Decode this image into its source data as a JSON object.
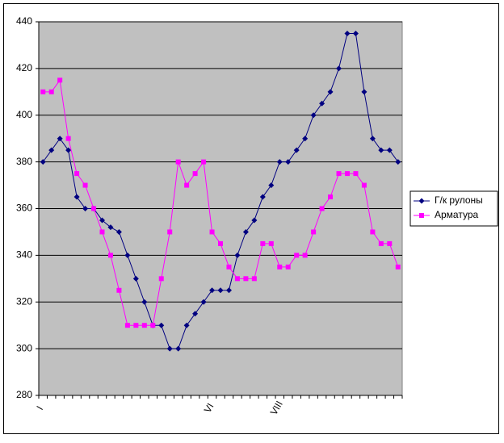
{
  "chart_data": {
    "type": "line",
    "categories": [
      "I",
      null,
      null,
      null,
      null,
      null,
      null,
      null,
      null,
      null,
      null,
      null,
      null,
      null,
      null,
      null,
      null,
      null,
      null,
      null,
      "VI",
      null,
      null,
      null,
      null,
      null,
      null,
      null,
      "VIII",
      null,
      null,
      null,
      null,
      null,
      null,
      null,
      null,
      null,
      null,
      null,
      null,
      null,
      null
    ],
    "series": [
      {
        "name": "Г/к рулоны",
        "color": "#000080",
        "marker": "diamond",
        "values": [
          380,
          385,
          390,
          385,
          365,
          360,
          360,
          355,
          352,
          350,
          340,
          330,
          320,
          310,
          310,
          300,
          300,
          310,
          315,
          320,
          325,
          325,
          325,
          340,
          350,
          355,
          365,
          370,
          380,
          380,
          385,
          390,
          400,
          405,
          410,
          420,
          435,
          435,
          410,
          390,
          385,
          385,
          380
        ]
      },
      {
        "name": "Арматура",
        "color": "#ff00ff",
        "marker": "square",
        "values": [
          410,
          410,
          415,
          390,
          375,
          370,
          360,
          350,
          340,
          325,
          310,
          310,
          310,
          310,
          330,
          350,
          380,
          370,
          375,
          380,
          350,
          345,
          335,
          330,
          330,
          330,
          345,
          345,
          335,
          335,
          340,
          340,
          350,
          360,
          365,
          375,
          375,
          375,
          370,
          350,
          345,
          345,
          335
        ]
      }
    ],
    "ylim": [
      280,
      440
    ],
    "yticks": [
      280,
      300,
      320,
      340,
      360,
      380,
      400,
      420,
      440
    ],
    "grid": true,
    "plot_background": "#c0c0c0",
    "legend": "right"
  }
}
